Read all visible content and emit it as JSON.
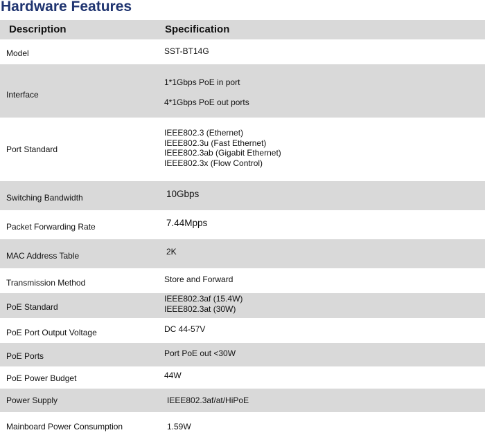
{
  "title": "Hardware Features",
  "header": {
    "description": "Description",
    "specification": "Specification"
  },
  "rows": [
    {
      "label": "Model",
      "value": [
        "SST-BT14G"
      ]
    },
    {
      "label": "Interface",
      "value": [
        "1*1Gbps PoE in port",
        "4*1Gbps PoE out ports"
      ]
    },
    {
      "label": "Port Standard",
      "value": [
        "IEEE802.3 (Ethernet)",
        "IEEE802.3u (Fast Ethernet)",
        "IEEE802.3ab (Gigabit Ethernet)",
        "IEEE802.3x (Flow Control)"
      ]
    },
    {
      "label": "Switching Bandwidth",
      "value": [
        "10Gbps"
      ]
    },
    {
      "label": "Packet Forwarding Rate",
      "value": [
        "7.44Mpps"
      ]
    },
    {
      "label": "MAC Address Table",
      "value": [
        "2K"
      ]
    },
    {
      "label": "Transmission Method",
      "value": [
        "Store and Forward"
      ]
    },
    {
      "label": "PoE Standard",
      "value": [
        "IEEE802.3af (15.4W)",
        "IEEE802.3at (30W)"
      ]
    },
    {
      "label": "PoE Port Output Voltage",
      "value": [
        "DC 44-57V"
      ]
    },
    {
      "label": "PoE Ports",
      "value": [
        "Port PoE out <30W"
      ]
    },
    {
      "label": "PoE Power Budget",
      "value": [
        "44W"
      ]
    },
    {
      "label": "Power Supply",
      "value": [
        "IEEE802.3af/at/HiPoE"
      ]
    },
    {
      "label": "Mainboard Power Consumption",
      "value": [
        "1.59W"
      ]
    }
  ],
  "colors": {
    "title": "#1f3470",
    "shaded_row": "#d9d9d9"
  }
}
